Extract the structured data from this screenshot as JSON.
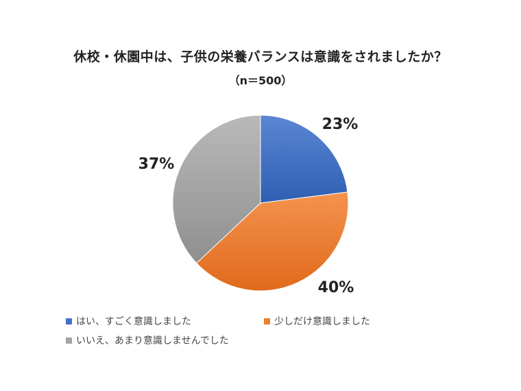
{
  "chart_data": {
    "type": "pie",
    "title": "休校・休園中は、子供の栄養バランスは意識をされましたか？",
    "subtitle": "（n＝500）",
    "categories": [
      "はい、すごく意識しました",
      "少しだけ意識しました",
      "いいえ、あまり意識しませんでした"
    ],
    "values": [
      23,
      40,
      37
    ],
    "labels": [
      "23%",
      "40%",
      "37%"
    ],
    "colors": [
      "#4472C4",
      "#ED7D31",
      "#A5A5A5"
    ],
    "legend_position": "bottom-left"
  }
}
